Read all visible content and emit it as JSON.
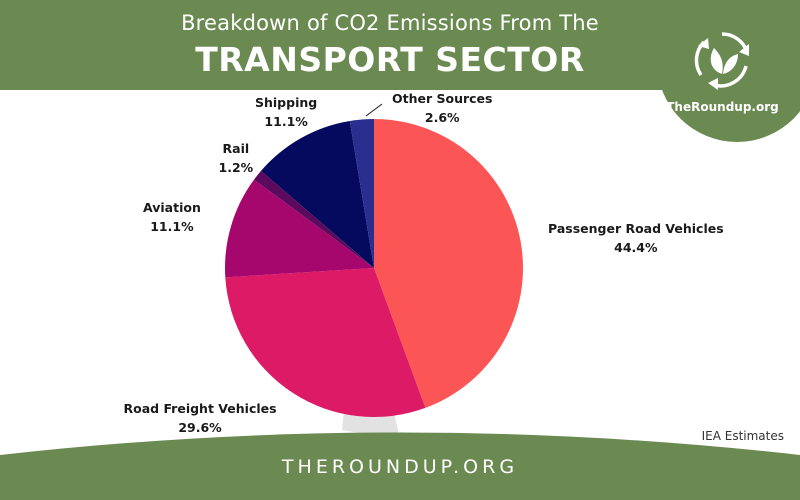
{
  "header": {
    "title_line1": "Breakdown of CO2 Emissions From The",
    "title_line2": "TRANSPORT SECTOR"
  },
  "badge": {
    "text": "TheRoundup.org",
    "icon": "recycle-leaf-icon"
  },
  "chart_data": {
    "type": "pie",
    "title": "Breakdown of CO2 Emissions From The TRANSPORT SECTOR",
    "slices": [
      {
        "label": "Passenger Road Vehicles",
        "value": 44.4,
        "value_label": "44.4%",
        "color": "#fc5555"
      },
      {
        "label": "Road Freight Vehicles",
        "value": 29.6,
        "value_label": "29.6%",
        "color": "#dc1a66"
      },
      {
        "label": "Aviation",
        "value": 11.1,
        "value_label": "11.1%",
        "color": "#a5076d"
      },
      {
        "label": "Rail",
        "value": 1.2,
        "value_label": "1.2%",
        "color": "#5c0a5e"
      },
      {
        "label": "Shipping",
        "value": 11.1,
        "value_label": "11.1%",
        "color": "#060a5f"
      },
      {
        "label": "Other Sources",
        "value": 2.6,
        "value_label": "2.6%",
        "color": "#2a2f8f"
      }
    ]
  },
  "source": "IEA Estimates",
  "footer": {
    "text": "THEROUNDUP.ORG"
  },
  "colors": {
    "header_green": "#6a8a52",
    "footer_green": "#6a8a52"
  }
}
